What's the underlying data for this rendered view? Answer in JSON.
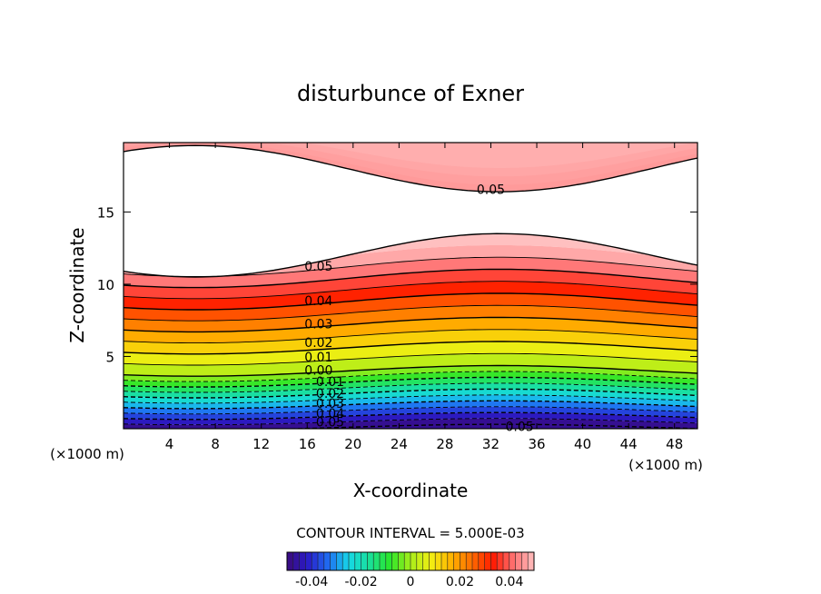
{
  "chart_data": {
    "type": "contour",
    "title": "disturbunce of Exner",
    "xlabel": "X-coordinate",
    "ylabel": "Z-coordinate",
    "x_unit_left": "(×1000 m)",
    "x_unit_right": "(×1000 m)",
    "xlim": [
      0,
      50
    ],
    "ylim": [
      0,
      19.8
    ],
    "x_ticks": [
      4,
      8,
      12,
      16,
      20,
      24,
      28,
      32,
      36,
      40,
      44,
      48
    ],
    "y_ticks": [
      5,
      10,
      15
    ],
    "contour_interval_text": "CONTOUR INTERVAL = 5.000E-03",
    "contour_interval": 0.005,
    "levels": [
      -0.05,
      -0.045,
      -0.04,
      -0.035,
      -0.03,
      -0.025,
      -0.02,
      -0.015,
      -0.01,
      -0.005,
      0.0,
      0.005,
      0.01,
      0.015,
      0.02,
      0.025,
      0.03,
      0.035,
      0.04,
      0.045,
      0.05
    ],
    "contour_labels": [
      {
        "text": "0.05",
        "x": 32.0,
        "z": 16.5
      },
      {
        "text": "0.05",
        "x": 17.0,
        "z": 11.2
      },
      {
        "text": "0.04",
        "x": 17.0,
        "z": 8.8
      },
      {
        "text": "0.03",
        "x": 17.0,
        "z": 7.2
      },
      {
        "text": "0.02",
        "x": 17.0,
        "z": 5.9
      },
      {
        "text": "0.01",
        "x": 17.0,
        "z": 4.9
      },
      {
        "text": "0.00",
        "x": 17.0,
        "z": 4.0
      },
      {
        "text": "0.01",
        "x": 18.0,
        "z": 3.2
      },
      {
        "text": "0.02",
        "x": 18.0,
        "z": 2.4
      },
      {
        "text": "0.03",
        "x": 18.0,
        "z": 1.7
      },
      {
        "text": "0.04",
        "x": 18.0,
        "z": 1.0
      },
      {
        "text": "0.05",
        "x": 18.0,
        "z": 0.4
      },
      {
        "text": "0.05",
        "x": 34.5,
        "z": 0.1
      }
    ],
    "field_model": {
      "sine_period_km": 53,
      "sine_phase_km": 19.5,
      "band_wave_amplitude": 0.5,
      "upper_white_region": {
        "bottom_base": 12.0,
        "bottom_amp": 1.5,
        "top_base": 18.0,
        "top_amp": 1.6
      }
    },
    "colorbar": {
      "range": [
        -0.05,
        0.05
      ],
      "tick_labels": [
        "-0.04",
        "-0.02",
        "0",
        "0.02",
        "0.04"
      ],
      "tick_values": [
        -0.04,
        -0.02,
        0,
        0.02,
        0.04
      ]
    },
    "colors": {
      "background": "#ffffff",
      "stops": [
        "#3a0a7a",
        "#2a1cc8",
        "#1f6cf2",
        "#16d8e8",
        "#19e09a",
        "#2ae62a",
        "#a8ee1a",
        "#f2ee12",
        "#ffb200",
        "#ff6a00",
        "#ff1a00",
        "#ff7070",
        "#ffc0c0"
      ]
    }
  }
}
